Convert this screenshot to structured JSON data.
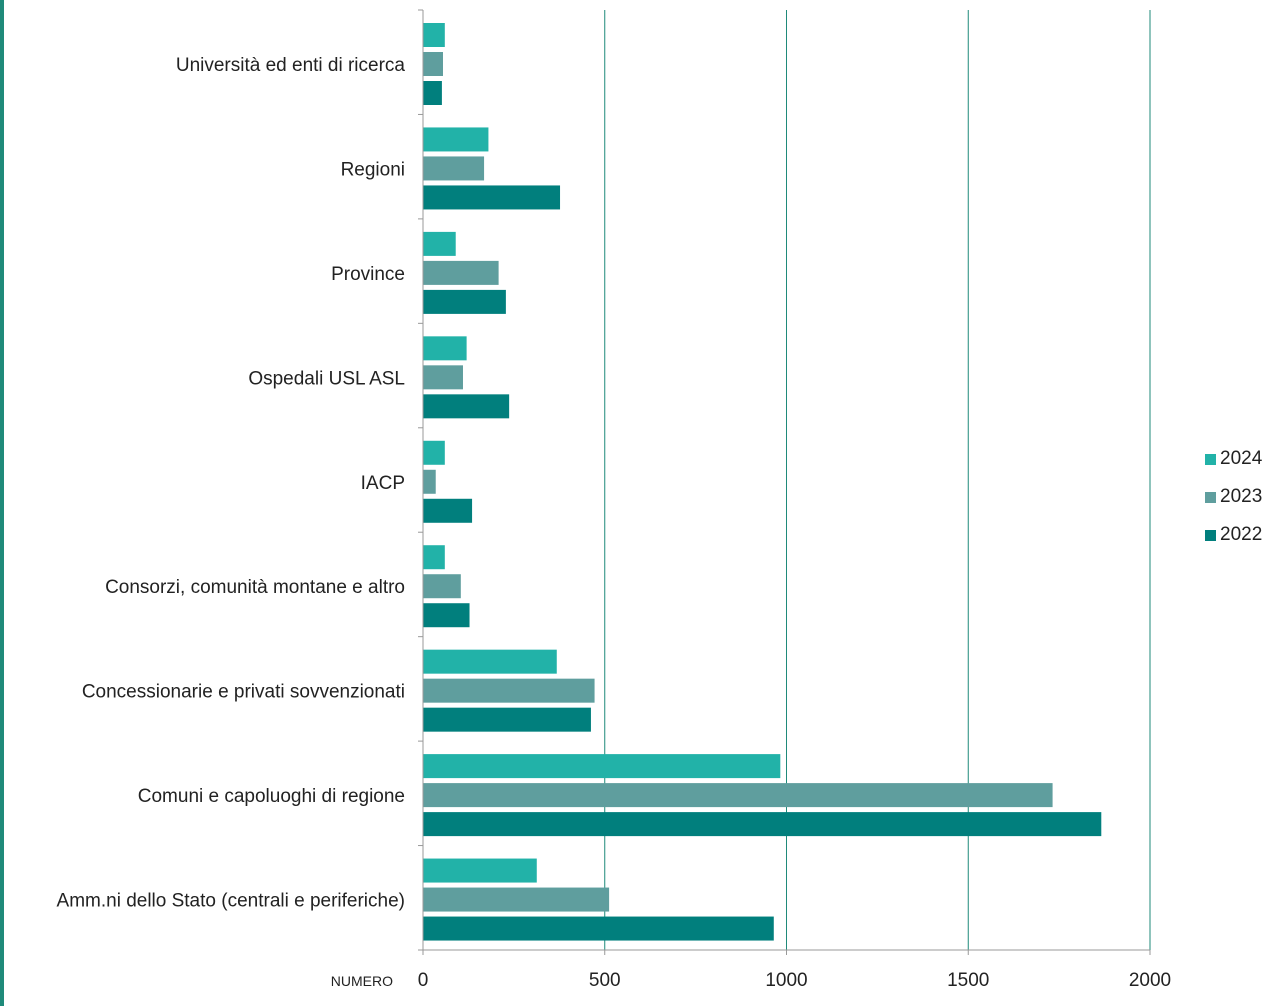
{
  "chart_data": {
    "type": "bar",
    "orientation": "horizontal",
    "categories": [
      "Università ed enti di ricerca",
      "Regioni",
      "Province",
      "Ospedali USL ASL",
      "IACP",
      "Consorzi, comunità montane e altro",
      "Concessionarie e privati sovvenzionati",
      "Comuni e capoluoghi di regione",
      "Amm.ni dello Stato (centrali e periferiche)"
    ],
    "series": [
      {
        "name": "2024",
        "color": "#22b2a8",
        "values": [
          60,
          180,
          90,
          120,
          60,
          60,
          368,
          983,
          313
        ]
      },
      {
        "name": "2023",
        "color": "#5f9e9e",
        "values": [
          55,
          168,
          208,
          110,
          35,
          104,
          472,
          1732,
          512
        ]
      },
      {
        "name": "2022",
        "color": "#017f7d",
        "values": [
          52,
          377,
          228,
          237,
          135,
          128,
          462,
          1866,
          965
        ]
      }
    ],
    "xlabel": "NUMERO",
    "xlim": [
      0,
      2000
    ],
    "xticks": [
      "0",
      "500",
      "1000",
      "1500",
      "2000"
    ],
    "grid": "vertical",
    "legend_position": "right"
  }
}
